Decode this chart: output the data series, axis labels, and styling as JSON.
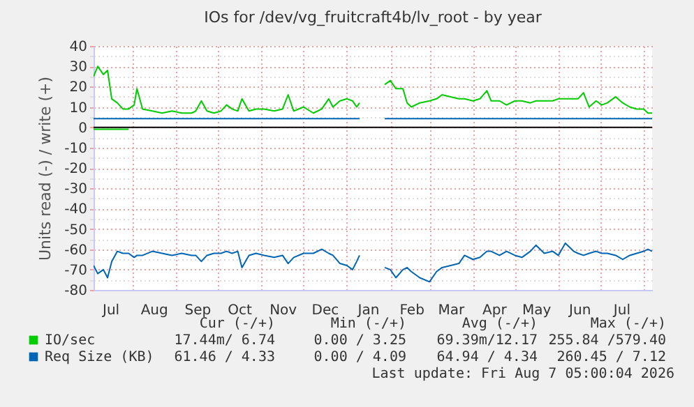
{
  "chart_data": {
    "type": "line",
    "title": "IOs for /dev/vg_fruitcraft4b/lv_root - by year",
    "ylabel": "Units read (-) / write (+)",
    "x": [
      "2025-07-04",
      "2025-07-07",
      "2025-07-11",
      "2025-07-14",
      "2025-07-17",
      "2025-07-21",
      "2025-07-25",
      "2025-07-29",
      "2025-08-02",
      "2025-08-04",
      "2025-08-08",
      "2025-08-15",
      "2025-08-22",
      "2025-08-29",
      "2025-09-05",
      "2025-09-12",
      "2025-09-15",
      "2025-09-19",
      "2025-09-23",
      "2025-09-28",
      "2025-10-03",
      "2025-10-07",
      "2025-10-11",
      "2025-10-15",
      "2025-10-18",
      "2025-10-23",
      "2025-10-28",
      "2025-11-03",
      "2025-11-10",
      "2025-11-16",
      "2025-11-20",
      "2025-11-24",
      "2025-12-01",
      "2025-12-08",
      "2025-12-14",
      "2025-12-19",
      "2025-12-22",
      "2025-12-27",
      "2026-01-01",
      "2026-01-05",
      "2026-01-08",
      "2026-01-10",
      "2026-01-11",
      "2026-01-28",
      "2026-02-01",
      "2026-02-05",
      "2026-02-10",
      "2026-02-13",
      "2026-02-16",
      "2026-02-22",
      "2026-03-01",
      "2026-03-06",
      "2026-03-10",
      "2026-03-16",
      "2026-03-22",
      "2026-03-26",
      "2026-04-01",
      "2026-04-06",
      "2026-04-11",
      "2026-04-14",
      "2026-04-20",
      "2026-04-25",
      "2026-05-01",
      "2026-05-06",
      "2026-05-12",
      "2026-05-16",
      "2026-05-22",
      "2026-05-28",
      "2026-06-01",
      "2026-06-06",
      "2026-06-12",
      "2026-06-15",
      "2026-06-19",
      "2026-06-23",
      "2026-06-28",
      "2026-07-02",
      "2026-07-06",
      "2026-07-12",
      "2026-07-17",
      "2026-07-22",
      "2026-07-27",
      "2026-08-01",
      "2026-08-04",
      "2026-08-07"
    ],
    "series": [
      {
        "name": "IO/sec",
        "color": "#00cc00",
        "values": [
          25,
          30,
          26,
          28,
          14,
          12,
          9,
          9,
          11,
          19,
          9,
          8,
          7,
          8,
          7,
          7,
          8,
          13,
          8,
          7,
          8,
          11,
          9,
          8,
          14,
          8,
          9,
          9,
          8,
          9,
          16,
          8,
          10,
          7,
          9,
          14,
          10,
          13,
          14,
          13,
          10,
          12,
          null,
          21,
          23,
          19,
          19,
          12,
          10,
          12,
          13,
          14,
          16,
          15,
          14,
          14,
          13,
          14,
          18,
          13,
          13,
          11,
          13,
          13,
          12,
          13,
          13,
          13,
          14,
          14,
          14,
          14,
          17,
          10,
          13,
          11,
          12,
          15,
          12,
          10,
          9,
          9,
          7,
          7
        ]
      },
      {
        "color": "#00cc00",
        "values": [
          -1,
          -1,
          -1,
          -1,
          -1,
          -1,
          -1,
          -1,
          null,
          null,
          null,
          null,
          null,
          null,
          null,
          null,
          null,
          null,
          null,
          null,
          null,
          null,
          null,
          null,
          null,
          null,
          null,
          null,
          null,
          null,
          null,
          null,
          null,
          null,
          null,
          null,
          null,
          null,
          null,
          null,
          null,
          null,
          null,
          null,
          null,
          null,
          null,
          null,
          null,
          null,
          null,
          null,
          null,
          null,
          null,
          null,
          null,
          null,
          null,
          null,
          null,
          null,
          null,
          null,
          null,
          null,
          null,
          null,
          null,
          null,
          null,
          null,
          null,
          null,
          null,
          null,
          null,
          null,
          null,
          null,
          null,
          null,
          null,
          null
        ]
      },
      {
        "name": "Req Size (KB)",
        "color": "#0066b3",
        "values": [
          4.3,
          4.3,
          4.3,
          4.3,
          4.3,
          4.3,
          4.3,
          4.3,
          4.3,
          4.3,
          4.3,
          4.3,
          4.3,
          4.3,
          4.3,
          4.3,
          4.3,
          4.3,
          4.3,
          4.3,
          4.3,
          4.3,
          4.3,
          4.3,
          4.3,
          4.3,
          4.3,
          4.3,
          4.3,
          4.3,
          4.3,
          4.3,
          4.3,
          4.3,
          4.3,
          4.3,
          4.3,
          4.3,
          4.3,
          4.3,
          4.3,
          4.3,
          null,
          4.3,
          4.3,
          4.3,
          4.3,
          4.3,
          4.3,
          4.3,
          4.3,
          4.3,
          4.3,
          4.3,
          4.3,
          4.3,
          4.3,
          4.3,
          4.3,
          4.3,
          4.3,
          4.3,
          4.3,
          4.3,
          4.3,
          4.3,
          4.3,
          4.3,
          4.3,
          4.3,
          4.3,
          4.3,
          4.3,
          4.3,
          4.3,
          4.3,
          4.3,
          4.3,
          4.3,
          4.3,
          4.3,
          4.3,
          4.3,
          4.3
        ]
      },
      {
        "color": "#0066b3",
        "values": [
          -68,
          -72,
          -70,
          -74,
          -66,
          -61,
          -62,
          -62,
          -64,
          -63,
          -63,
          -61,
          -62,
          -63,
          -62,
          -63,
          -63,
          -66,
          -63,
          -62,
          -62,
          -61,
          -62,
          -61,
          -69,
          -63,
          -62,
          -63,
          -64,
          -63,
          -67,
          -64,
          -62,
          -62,
          -60,
          -62,
          -63,
          -67,
          -68,
          -70,
          -66,
          -63,
          null,
          -69,
          -70,
          -74,
          -70,
          -69,
          -71,
          -74,
          -76,
          -71,
          -69,
          -68,
          -67,
          -63,
          -65,
          -64,
          -61,
          -61,
          -63,
          -61,
          -63,
          -64,
          -61,
          -58,
          -62,
          -61,
          -63,
          -57,
          -61,
          -62,
          -63,
          -62,
          -61,
          -62,
          -62,
          -63,
          -65,
          -63,
          -62,
          -61,
          -60,
          -61
        ]
      }
    ],
    "xlim": [
      "2025-07-04",
      "2026-08-07"
    ],
    "xticks": [
      {
        "value": "2025-07-16",
        "label": "Jul"
      },
      {
        "value": "2025-08-01",
        "label": null
      },
      {
        "value": "2025-08-16",
        "label": "Aug"
      },
      {
        "value": "2025-09-01",
        "label": null
      },
      {
        "value": "2025-09-16",
        "label": "Sep"
      },
      {
        "value": "2025-10-01",
        "label": null
      },
      {
        "value": "2025-10-16",
        "label": "Oct"
      },
      {
        "value": "2025-11-01",
        "label": null
      },
      {
        "value": "2025-11-16",
        "label": "Nov"
      },
      {
        "value": "2025-12-01",
        "label": null
      },
      {
        "value": "2025-12-16",
        "label": "Dec"
      },
      {
        "value": "2026-01-01",
        "label": null
      },
      {
        "value": "2026-01-16",
        "label": "Jan"
      },
      {
        "value": "2026-02-01",
        "label": null
      },
      {
        "value": "2026-02-16",
        "label": "Feb"
      },
      {
        "value": "2026-03-01",
        "label": null
      },
      {
        "value": "2026-03-16",
        "label": "Mar"
      },
      {
        "value": "2026-04-01",
        "label": null
      },
      {
        "value": "2026-04-16",
        "label": "Apr"
      },
      {
        "value": "2026-05-01",
        "label": null
      },
      {
        "value": "2026-05-16",
        "label": "May"
      },
      {
        "value": "2026-06-01",
        "label": null
      },
      {
        "value": "2026-06-16",
        "label": "Jun"
      },
      {
        "value": "2026-07-01",
        "label": null
      },
      {
        "value": "2026-07-16",
        "label": "Jul"
      },
      {
        "value": "2026-08-01",
        "label": null
      }
    ],
    "ylim": [
      -80,
      40
    ],
    "yticks": [
      -80,
      {
        "value": -75,
        "label": null
      },
      -70,
      {
        "value": -65,
        "label": null
      },
      -60,
      {
        "value": -55,
        "label": null
      },
      -50,
      {
        "value": -45,
        "label": null
      },
      -40,
      {
        "value": -35,
        "label": null
      },
      -30,
      {
        "value": -25,
        "label": null
      },
      -20,
      {
        "value": -15,
        "label": null
      },
      -10,
      {
        "value": -5,
        "label": null
      },
      0,
      {
        "value": 5,
        "label": null
      },
      10,
      {
        "value": 15,
        "label": null
      },
      20,
      {
        "value": 25,
        "label": null
      },
      30,
      {
        "value": 35,
        "label": null
      },
      40
    ],
    "ref_lines": [
      {
        "axis": "y",
        "value": 0,
        "color": "#000000"
      }
    ],
    "grid": true,
    "legend": "bottom",
    "annotations": [
      "Cur (-/+)",
      "Min (-/+)",
      "Avg (-/+)",
      "Max (-/+)",
      "17.44m/ 6.74",
      "0.00 / 3.25",
      "69.39m/12.17",
      "255.84 /579.40",
      "61.46 / 4.33",
      "0.00 / 4.09",
      "64.94 / 4.34",
      "260.45 / 7.12",
      "Last update: Fri Aug  7 05:00:04 2026"
    ]
  }
}
